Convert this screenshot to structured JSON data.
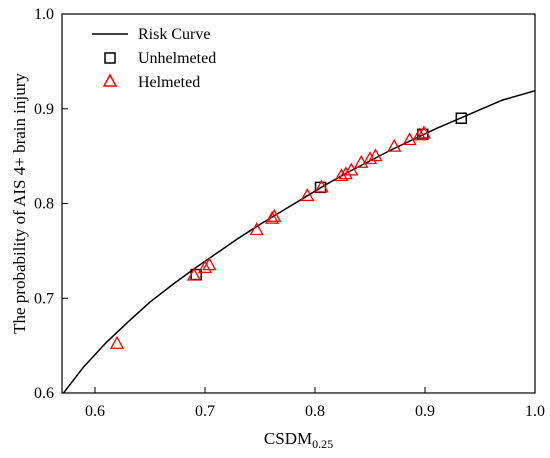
{
  "chart_data": {
    "type": "scatter",
    "title": "",
    "xlabel": "CSDM",
    "xlabel_sub": "0.25",
    "ylabel": "The probability of AIS 4+ brain injury",
    "xlim": [
      0.57,
      1.0
    ],
    "ylim": [
      0.6,
      1.0
    ],
    "xticks": [
      "0.6",
      "0.7",
      "0.8",
      "0.9",
      "1.0"
    ],
    "yticks": [
      "0.6",
      "0.7",
      "0.8",
      "0.9",
      "1.0"
    ],
    "legend_position": "top-left",
    "colors": {
      "risk_curve": "#000000",
      "unhelmeted": "#000000",
      "helmeted": "#ff0000"
    },
    "series": [
      {
        "name": "Risk Curve",
        "kind": "line",
        "x": [
          0.57,
          0.59,
          0.61,
          0.63,
          0.65,
          0.67,
          0.69,
          0.71,
          0.73,
          0.75,
          0.77,
          0.79,
          0.81,
          0.83,
          0.85,
          0.87,
          0.89,
          0.91,
          0.93,
          0.95,
          0.97,
          1.0
        ],
        "y": [
          0.598,
          0.628,
          0.653,
          0.675,
          0.696,
          0.714,
          0.731,
          0.747,
          0.763,
          0.778,
          0.792,
          0.806,
          0.82,
          0.833,
          0.845,
          0.857,
          0.868,
          0.879,
          0.889,
          0.899,
          0.909,
          0.919
        ]
      },
      {
        "name": "Unhelmeted",
        "kind": "square",
        "x": [
          0.692,
          0.805,
          0.898,
          0.933
        ],
        "y": [
          0.725,
          0.817,
          0.873,
          0.89
        ]
      },
      {
        "name": "Helmeted",
        "kind": "triangle",
        "x": [
          0.62,
          0.69,
          0.7,
          0.704,
          0.747,
          0.761,
          0.763,
          0.793,
          0.806,
          0.824,
          0.828,
          0.833,
          0.842,
          0.85,
          0.855,
          0.872,
          0.886,
          0.895,
          0.899
        ],
        "y": [
          0.652,
          0.724,
          0.732,
          0.735,
          0.772,
          0.784,
          0.786,
          0.808,
          0.817,
          0.829,
          0.831,
          0.835,
          0.843,
          0.847,
          0.85,
          0.86,
          0.867,
          0.872,
          0.874
        ]
      }
    ]
  }
}
